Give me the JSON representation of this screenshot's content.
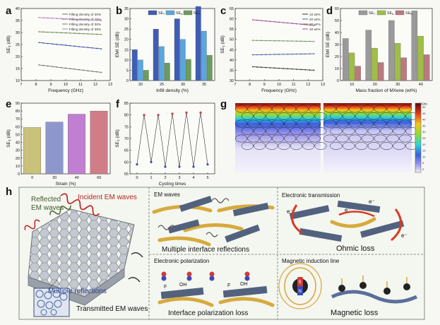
{
  "panels": {
    "a": {
      "label": "a",
      "chart_data": {
        "type": "line",
        "xlabel": "Frequency (GHz)",
        "ylabel": "SE_T (dB)",
        "xlim": [
          7,
          13
        ],
        "ylim": [
          10,
          40
        ],
        "xticks": [
          7,
          8,
          9,
          10,
          11,
          12,
          13
        ],
        "yticks": [
          10,
          15,
          20,
          25,
          30,
          35,
          40
        ],
        "series": [
          {
            "name": "Filling density of 20%",
            "x": [
              8.2,
              12.4
            ],
            "y": [
              16.5,
              13.4
            ],
            "color": "#6d6d6d"
          },
          {
            "name": "Filling density of 25%",
            "x": [
              8.2,
              12.4
            ],
            "y": [
              25.8,
              23.2
            ],
            "color": "#3c4ea8"
          },
          {
            "name": "Filling density of 30%",
            "x": [
              8.2,
              12.4
            ],
            "y": [
              30.3,
              29.2
            ],
            "color": "#6b8d4c"
          },
          {
            "name": "Filling density of 35%",
            "x": [
              8.2,
              12.4
            ],
            "y": [
              36.2,
              35.0
            ],
            "color": "#b07fb6"
          }
        ]
      }
    },
    "b": {
      "label": "b",
      "chart_data": {
        "type": "bar",
        "xlabel": "Infill density (%)",
        "ylabel": "EMI SE (dB)",
        "categories": [
          "20",
          "25",
          "30",
          "35"
        ],
        "ylim": [
          0,
          35
        ],
        "yticks": [
          0,
          5,
          10,
          15,
          20,
          25,
          30,
          35
        ],
        "series": [
          {
            "name": "SE_T",
            "values": [
              15.0,
              25.0,
              30.0,
              36.0
            ],
            "color": "#3f5db6"
          },
          {
            "name": "SE_A",
            "values": [
              10.0,
              16.5,
              20.0,
              24.0
            ],
            "color": "#5aa7df"
          },
          {
            "name": "SE_R",
            "values": [
              5.0,
              8.5,
              10.3,
              12.3
            ],
            "color": "#6c9b5d"
          }
        ]
      }
    },
    "c": {
      "label": "c",
      "chart_data": {
        "type": "line",
        "xlabel": "Frequency (GHz)",
        "ylabel": "SE_T (dB)",
        "xlim": [
          7,
          13
        ],
        "ylim": [
          30,
          65
        ],
        "xticks": [
          7,
          8,
          9,
          10,
          11,
          12,
          13
        ],
        "yticks": [
          30,
          35,
          40,
          45,
          50,
          55,
          60,
          65
        ],
        "series": [
          {
            "name": "10 wt%",
            "x": [
              8.2,
              12.4
            ],
            "y": [
              36.7,
              35.0
            ],
            "color": "#333333"
          },
          {
            "name": "20 wt%",
            "x": [
              8.2,
              12.4
            ],
            "y": [
              42.5,
              43.0
            ],
            "color": "#4a5fa8"
          },
          {
            "name": "30 wt%",
            "x": [
              8.2,
              12.4
            ],
            "y": [
              49.5,
              49.0
            ],
            "color": "#6a9a5a"
          },
          {
            "name": "40 wt%",
            "x": [
              8.2,
              12.4
            ],
            "y": [
              59.5,
              56.8
            ],
            "color": "#9a4d8a"
          }
        ]
      }
    },
    "d": {
      "label": "d",
      "chart_data": {
        "type": "bar",
        "xlabel": "Mass fraction of MXene (wt%)",
        "ylabel": "EMI SE (dB)",
        "categories": [
          "10",
          "20",
          "30",
          "40"
        ],
        "ylim": [
          0,
          60
        ],
        "yticks": [
          0,
          10,
          20,
          30,
          40,
          50,
          60
        ],
        "series": [
          {
            "name": "SE_T",
            "values": [
              35.0,
              42.0,
              50.0,
              58.0
            ],
            "color": "#9a9a9a"
          },
          {
            "name": "SE_A",
            "values": [
              23.0,
              27.0,
              31.0,
              37.0
            ],
            "color": "#9fbe46"
          },
          {
            "name": "SE_R",
            "values": [
              12.0,
              15.0,
              19.0,
              21.5
            ],
            "color": "#b97a80"
          }
        ]
      }
    },
    "e": {
      "label": "e",
      "chart_data": {
        "type": "bar",
        "xlabel": "Strain (%)",
        "ylabel": "SE_T (dB)",
        "categories": [
          "0",
          "20",
          "40",
          "60"
        ],
        "ylim": [
          0,
          90
        ],
        "yticks": [
          0,
          10,
          20,
          30,
          40,
          50,
          60,
          70,
          80,
          90
        ],
        "series": [
          {
            "name": "",
            "values": [
              59,
              66,
              76,
              80
            ],
            "colors": [
              "#c8c27a",
              "#8e97cc",
              "#c07fd0",
              "#d17d88"
            ]
          }
        ]
      }
    },
    "f": {
      "label": "f",
      "chart_data": {
        "type": "line",
        "xlabel": "Cycling times",
        "ylabel": "SE_T (dB)",
        "xlim": [
          -0.5,
          5.5
        ],
        "ylim": [
          55,
          85
        ],
        "xticks": [
          0,
          1,
          2,
          3,
          4,
          5
        ],
        "yticks": [
          55,
          60,
          65,
          70,
          75,
          80,
          85
        ],
        "series": [
          {
            "name": "",
            "x": [
              0,
              0.5,
              1,
              1.5,
              2,
              2.5,
              3,
              3.5,
              4,
              4.5,
              5
            ],
            "y": [
              59,
              80,
              60,
              80,
              58,
              80.5,
              58,
              81,
              58,
              81,
              59
            ],
            "colors": [
              "#3b4ab5",
              "#d23a3a"
            ]
          }
        ]
      }
    },
    "g": {
      "label": "g",
      "colorbar": {
        "unit": "V/m",
        "ticks": [
          "50",
          "45",
          "40",
          "35",
          "30",
          "25",
          "20",
          "15",
          "10",
          "5",
          "0"
        ]
      }
    },
    "h": {
      "label": "h",
      "left": {
        "reflected": "Reflected\nEM waves",
        "incident": "Incident EM waves",
        "multiple": "Multiple reflections",
        "transmitted": "Transmitted EM waves"
      },
      "boxes": {
        "em_waves": "EM waves",
        "multi_interface": "Multiple interface reflections",
        "electronic_transmission": "Electronic transmission",
        "ohmic_loss": "Ohmic loss",
        "electronic_polarization": "Electronic polarization",
        "interface_polarization": "Interface polarization loss",
        "magnetic_induction": "Magnetic induction line",
        "magnetic_loss": "Magnetic loss"
      },
      "chem": {
        "f": "F",
        "oh": "OH",
        "electron": "e⁻"
      },
      "magnet": {
        "s": "S",
        "n": "N"
      }
    }
  }
}
